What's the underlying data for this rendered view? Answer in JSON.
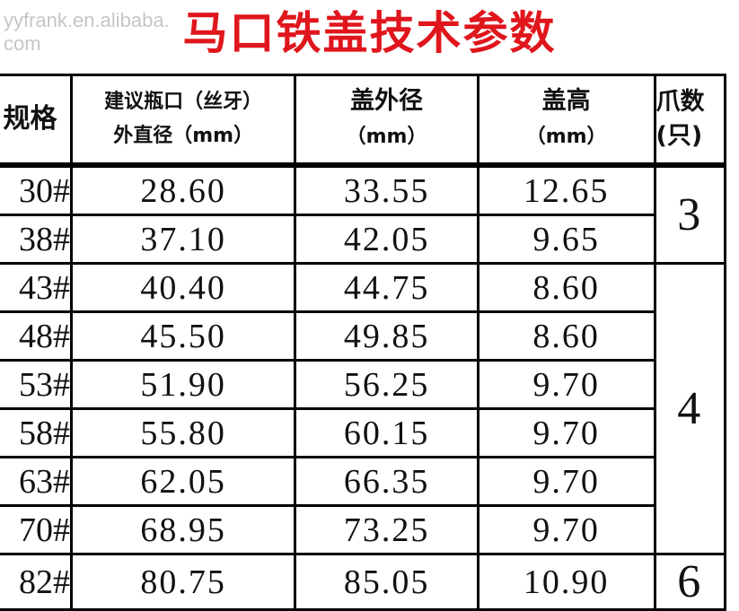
{
  "title": "马口铁盖技术参数",
  "watermark": "yyfrank.en.alibaba.com",
  "headers": {
    "spec": "规格",
    "neck_line1": "建议瓶口（丝牙）",
    "neck_line2": "外直径（mm）",
    "cap_od_line1": "盖外径",
    "cap_od_line2": "（mm）",
    "cap_h_line1": "盖高",
    "cap_h_line2": "（mm）",
    "claws_line1": "爪数",
    "claws_line2": "(只)"
  },
  "rows": [
    {
      "spec": "30#",
      "neck": "28.60",
      "cap_od": "33.55",
      "cap_h": "12.65"
    },
    {
      "spec": "38#",
      "neck": "37.10",
      "cap_od": "42.05",
      "cap_h": "9.65"
    },
    {
      "spec": "43#",
      "neck": "40.40",
      "cap_od": "44.75",
      "cap_h": "8.60"
    },
    {
      "spec": "48#",
      "neck": "45.50",
      "cap_od": "49.85",
      "cap_h": "8.60"
    },
    {
      "spec": "53#",
      "neck": "51.90",
      "cap_od": "56.25",
      "cap_h": "9.70"
    },
    {
      "spec": "58#",
      "neck": "55.80",
      "cap_od": "60.15",
      "cap_h": "9.70"
    },
    {
      "spec": "63#",
      "neck": "62.05",
      "cap_od": "66.35",
      "cap_h": "9.70"
    },
    {
      "spec": "70#",
      "neck": "68.95",
      "cap_od": "73.25",
      "cap_h": "9.70"
    },
    {
      "spec": "82#",
      "neck": "80.75",
      "cap_od": "85.05",
      "cap_h": "10.90"
    }
  ],
  "claw_groups": [
    "3",
    "4",
    "6"
  ],
  "colors": {
    "title": "#e0161d",
    "border": "#000000"
  }
}
